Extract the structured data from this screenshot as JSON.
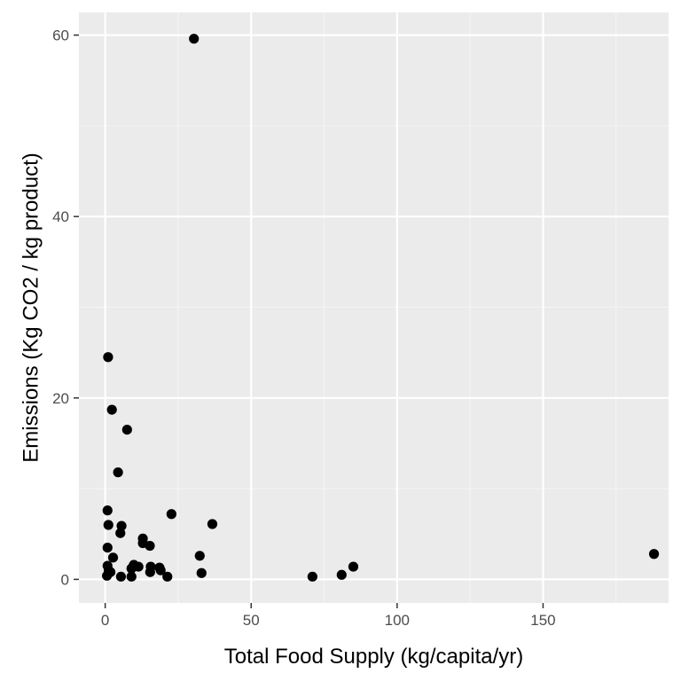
{
  "chart_data": {
    "type": "scatter",
    "title": "",
    "xlabel": "Total Food Supply (kg/capita/yr)",
    "ylabel": "Emissions (Kg CO2 / kg product)",
    "xlim": [
      -9,
      193
    ],
    "ylim": [
      -2.6,
      62.5
    ],
    "x_ticks": [
      0,
      50,
      100,
      150
    ],
    "y_ticks": [
      0,
      20,
      40,
      60
    ],
    "grid": true,
    "legend": "none",
    "colors": {
      "panel": "#ebebeb",
      "grid_major": "#ffffff",
      "grid_minor": "#f4f4f4",
      "point": "#000000",
      "tick": "#333333"
    },
    "points": [
      {
        "x": 30.4,
        "y": 59.6
      },
      {
        "x": 1.0,
        "y": 24.5
      },
      {
        "x": 2.3,
        "y": 18.7
      },
      {
        "x": 7.5,
        "y": 16.5
      },
      {
        "x": 4.4,
        "y": 11.8
      },
      {
        "x": 0.8,
        "y": 7.6
      },
      {
        "x": 22.7,
        "y": 7.2
      },
      {
        "x": 36.7,
        "y": 6.1
      },
      {
        "x": 1.1,
        "y": 6.0
      },
      {
        "x": 5.6,
        "y": 5.9
      },
      {
        "x": 5.2,
        "y": 5.1
      },
      {
        "x": 12.9,
        "y": 4.5
      },
      {
        "x": 12.9,
        "y": 4.0
      },
      {
        "x": 15.3,
        "y": 3.7
      },
      {
        "x": 0.8,
        "y": 3.5
      },
      {
        "x": 32.4,
        "y": 2.6
      },
      {
        "x": 2.7,
        "y": 2.4
      },
      {
        "x": 9.8,
        "y": 1.6
      },
      {
        "x": 11.4,
        "y": 1.4
      },
      {
        "x": 15.6,
        "y": 1.4
      },
      {
        "x": 18.6,
        "y": 1.3
      },
      {
        "x": 85.0,
        "y": 1.4
      },
      {
        "x": 0.8,
        "y": 1.5
      },
      {
        "x": 9.0,
        "y": 1.2
      },
      {
        "x": 1.2,
        "y": 1.0
      },
      {
        "x": 19.0,
        "y": 1.0
      },
      {
        "x": 15.4,
        "y": 0.8
      },
      {
        "x": 33.0,
        "y": 0.7
      },
      {
        "x": 1.8,
        "y": 0.8
      },
      {
        "x": 0.6,
        "y": 0.4
      },
      {
        "x": 5.4,
        "y": 0.3
      },
      {
        "x": 9.0,
        "y": 0.3
      },
      {
        "x": 21.3,
        "y": 0.3
      },
      {
        "x": 71.0,
        "y": 0.3
      },
      {
        "x": 81.0,
        "y": 0.5
      },
      {
        "x": 188.0,
        "y": 2.8
      }
    ]
  }
}
